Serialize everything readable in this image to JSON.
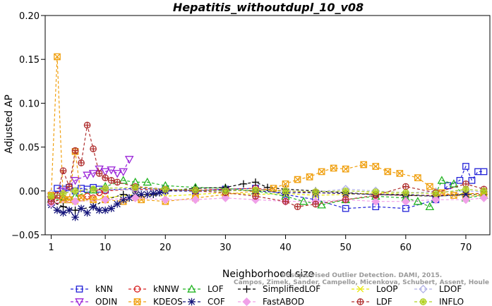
{
  "chart_data": {
    "type": "line",
    "title": "Hepatitis_withoutdupl_10_v08",
    "xlabel": "Neighborhood size",
    "ylabel": "Adjusted AP",
    "xlim": [
      0,
      74
    ],
    "ylim": [
      -0.05,
      0.2
    ],
    "x_ticks": [
      1,
      10,
      20,
      30,
      40,
      50,
      60,
      70
    ],
    "y_ticks": [
      -0.05,
      0.0,
      0.05,
      0.1,
      0.15,
      0.2
    ],
    "y_tick_labels": [
      "−0.05",
      "0.00",
      "0.05",
      "0.10",
      "0.15",
      "0.20"
    ],
    "grid": false,
    "legend_position": "bottom",
    "watermark": [
      "Campos, Zimek, Sander, Campello, Micenkova, Schubert, Assent, Houle",
      "Unsupervised Outlier Detection. DAMI, 2015."
    ],
    "series": [
      {
        "name": "kNN",
        "color": "#2323d8",
        "marker": "square",
        "x": [
          1,
          2,
          3,
          4,
          5,
          6,
          7,
          8,
          9,
          10,
          15,
          20,
          25,
          30,
          35,
          40,
          45,
          50,
          55,
          60,
          65,
          67,
          69,
          70,
          71,
          72,
          73
        ],
        "y": [
          -0.013,
          0.003,
          0.002,
          0.004,
          0.0,
          0.003,
          0.002,
          0.004,
          0.002,
          0.001,
          0.003,
          0.002,
          0.0,
          0.002,
          0.003,
          -0.004,
          -0.01,
          -0.02,
          -0.018,
          -0.02,
          -0.01,
          0.006,
          0.012,
          0.028,
          0.012,
          0.022,
          0.022
        ]
      },
      {
        "name": "kNNW",
        "color": "#d82323",
        "marker": "circle",
        "x": [
          1,
          2,
          3,
          4,
          5,
          6,
          7,
          8,
          9,
          10,
          15,
          20,
          25,
          30,
          35,
          40,
          45,
          50,
          55,
          60,
          65,
          70,
          73
        ],
        "y": [
          -0.013,
          -0.011,
          -0.008,
          -0.01,
          -0.012,
          -0.008,
          -0.006,
          -0.008,
          -0.002,
          0.0,
          0.002,
          0.001,
          0.001,
          0.002,
          0.003,
          0.0,
          -0.002,
          -0.003,
          -0.004,
          -0.005,
          -0.005,
          -0.003,
          -0.003
        ]
      },
      {
        "name": "LOF",
        "color": "#23b423",
        "marker": "triangle-up",
        "x": [
          1,
          3,
          5,
          8,
          10,
          13,
          15,
          17,
          20,
          25,
          30,
          35,
          40,
          43,
          46,
          50,
          55,
          60,
          62,
          64,
          66,
          68,
          70,
          73
        ],
        "y": [
          -0.01,
          -0.01,
          -0.006,
          0.001,
          0.005,
          0.012,
          0.01,
          0.01,
          0.006,
          0.004,
          0.003,
          0.0,
          -0.006,
          -0.012,
          -0.016,
          -0.01,
          -0.006,
          -0.008,
          -0.012,
          -0.018,
          0.012,
          0.008,
          -0.008,
          -0.005
        ]
      },
      {
        "name": "SimplifiedLOF",
        "color": "#000000",
        "marker": "plus",
        "x": [
          1,
          3,
          5,
          8,
          10,
          13,
          15,
          18,
          20,
          25,
          30,
          33,
          35,
          37,
          40,
          45,
          50,
          55,
          60,
          65,
          70,
          73
        ],
        "y": [
          -0.012,
          -0.018,
          -0.022,
          -0.018,
          -0.01,
          -0.004,
          -0.006,
          -0.004,
          0.0,
          0.003,
          0.004,
          0.008,
          0.01,
          0.004,
          0.002,
          0.0,
          -0.002,
          -0.004,
          -0.005,
          -0.006,
          -0.004,
          -0.004
        ]
      },
      {
        "name": "LoOP",
        "color": "#e8e800",
        "marker": "x",
        "x": [
          1,
          5,
          10,
          15,
          20,
          25,
          30,
          35,
          40,
          45,
          50,
          55,
          60,
          65,
          70,
          73
        ],
        "y": [
          -0.006,
          -0.012,
          -0.008,
          -0.004,
          -0.006,
          -0.004,
          -0.002,
          -0.004,
          -0.003,
          -0.005,
          -0.004,
          -0.002,
          -0.004,
          -0.006,
          -0.003,
          -0.004
        ]
      },
      {
        "name": "LDOF",
        "color": "#b0b0e6",
        "marker": "diamond",
        "x": [
          1,
          5,
          10,
          15,
          20,
          25,
          30,
          35,
          40,
          45,
          50,
          55,
          60,
          65,
          70,
          73
        ],
        "y": [
          -0.003,
          0.0,
          0.002,
          0.001,
          0.0,
          -0.001,
          0.0,
          0.001,
          0.0,
          -0.001,
          0.002,
          0.0,
          -0.002,
          -0.001,
          0.0,
          -0.001
        ]
      },
      {
        "name": "ODIN",
        "color": "#9a23d8",
        "marker": "triangle-down",
        "x": [
          1,
          3,
          5,
          7,
          8,
          9,
          10,
          11,
          12,
          13,
          14
        ],
        "y": [
          -0.01,
          0.0,
          0.012,
          0.018,
          0.02,
          0.025,
          0.022,
          0.024,
          0.02,
          0.022,
          0.036
        ]
      },
      {
        "name": "KDEOS",
        "color": "#f0a010",
        "marker": "square-x",
        "x": [
          1,
          2,
          3,
          4,
          5,
          6,
          8,
          10,
          13,
          16,
          20,
          25,
          30,
          35,
          38,
          40,
          42,
          44,
          46,
          48,
          50,
          53,
          55,
          57,
          59,
          62,
          64,
          66,
          68,
          70,
          73
        ],
        "y": [
          -0.005,
          0.153,
          -0.01,
          -0.01,
          0.045,
          -0.008,
          -0.01,
          -0.01,
          -0.012,
          -0.01,
          -0.012,
          -0.008,
          -0.004,
          0.0,
          0.003,
          0.008,
          0.013,
          0.016,
          0.022,
          0.026,
          0.025,
          0.03,
          0.028,
          0.022,
          0.02,
          0.015,
          0.005,
          -0.002,
          -0.005,
          -0.006,
          -0.005
        ]
      },
      {
        "name": "COF",
        "color": "#14147a",
        "marker": "asterisk",
        "x": [
          1,
          2,
          3,
          4,
          5,
          6,
          7,
          8,
          9,
          10,
          11,
          12,
          13,
          14,
          15,
          16,
          17,
          18,
          19,
          20,
          25,
          30,
          35,
          40,
          45,
          50,
          55,
          60,
          65,
          70
        ],
        "y": [
          -0.016,
          -0.022,
          -0.025,
          -0.022,
          -0.03,
          -0.02,
          -0.025,
          -0.018,
          -0.022,
          -0.022,
          -0.02,
          -0.015,
          -0.01,
          -0.008,
          -0.005,
          -0.004,
          -0.004,
          -0.003,
          -0.002,
          0.0,
          0.0,
          0.001,
          0.0,
          -0.002,
          -0.002,
          -0.003,
          -0.004,
          -0.004,
          -0.006,
          -0.004
        ]
      },
      {
        "name": "FastABOD",
        "color": "#f0a0e8",
        "marker": "diamond-filled",
        "x": [
          1,
          5,
          10,
          15,
          20,
          25,
          30,
          35,
          40,
          45,
          50,
          55,
          60,
          65,
          70,
          73
        ],
        "y": [
          -0.014,
          -0.012,
          -0.01,
          -0.008,
          -0.01,
          -0.01,
          -0.008,
          -0.01,
          -0.012,
          -0.012,
          -0.01,
          -0.012,
          -0.012,
          -0.01,
          -0.01,
          -0.008
        ]
      },
      {
        "name": "LDF",
        "color": "#b03030",
        "marker": "circle-plus",
        "x": [
          1,
          2,
          3,
          4,
          5,
          6,
          7,
          8,
          9,
          10,
          11,
          12,
          15,
          20,
          25,
          30,
          35,
          40,
          42,
          45,
          50,
          55,
          60,
          65,
          70,
          73
        ],
        "y": [
          -0.012,
          -0.005,
          0.023,
          0.005,
          0.046,
          0.032,
          0.075,
          0.048,
          0.02,
          0.015,
          0.012,
          0.01,
          0.005,
          0.002,
          0.0,
          -0.002,
          -0.006,
          -0.012,
          -0.018,
          -0.015,
          -0.01,
          -0.005,
          0.005,
          -0.002,
          0.008,
          0.002
        ]
      },
      {
        "name": "INFLO",
        "color": "#b0d020",
        "marker": "circle-star",
        "x": [
          1,
          3,
          5,
          8,
          10,
          15,
          20,
          25,
          30,
          35,
          40,
          45,
          50,
          55,
          60,
          65,
          70,
          73
        ],
        "y": [
          -0.006,
          -0.003,
          0.0,
          0.002,
          0.003,
          0.004,
          0.002,
          0.001,
          0.0,
          0.001,
          0.0,
          -0.001,
          0.0,
          -0.001,
          -0.002,
          -0.003,
          0.002,
          0.0
        ]
      }
    ]
  }
}
